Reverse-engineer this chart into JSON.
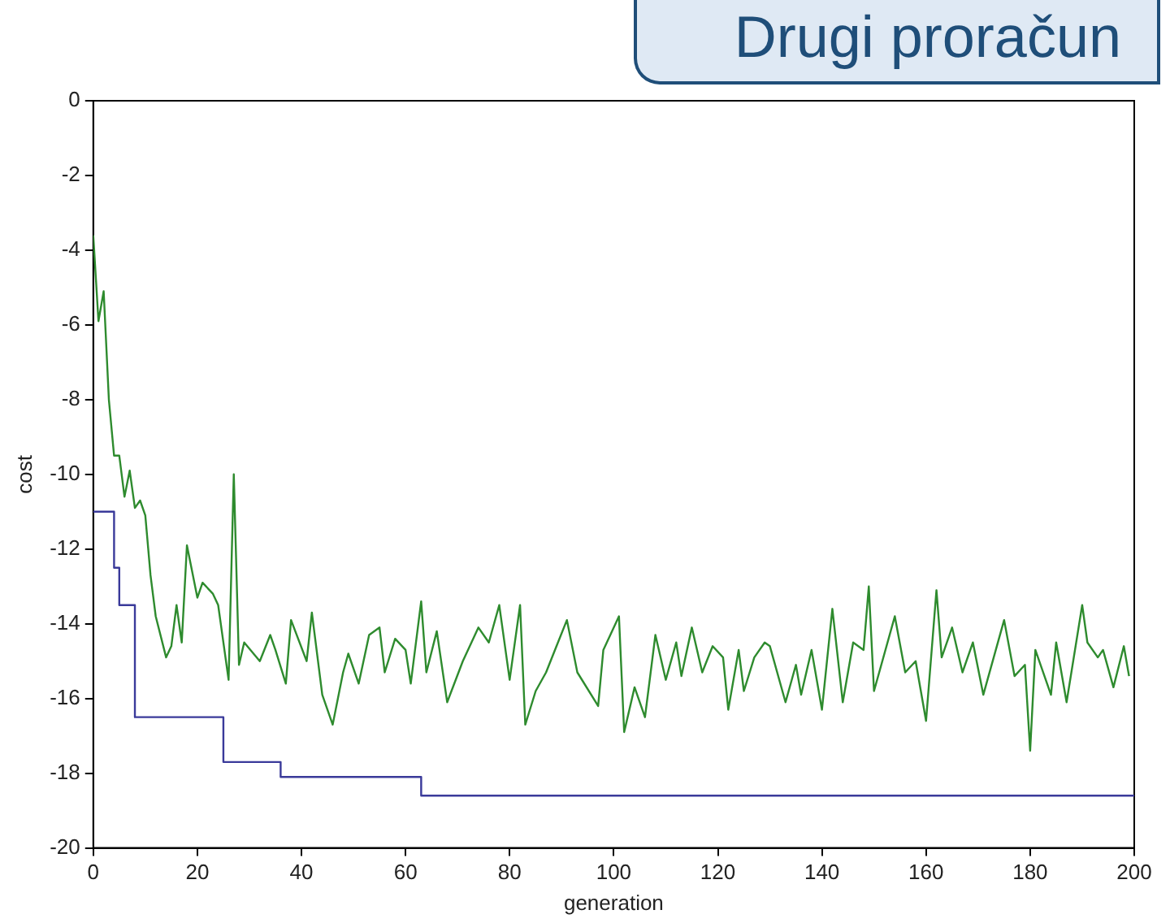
{
  "chart_data": {
    "type": "line",
    "title": "Drugi proračun",
    "xlabel": "generation",
    "ylabel": "cost",
    "xlim": [
      0,
      200
    ],
    "xticks": [
      0,
      20,
      40,
      60,
      80,
      100,
      120,
      140,
      160,
      180,
      200
    ],
    "ylim": [
      -20,
      0
    ],
    "yticks": [
      -20,
      -18,
      -16,
      -14,
      -12,
      -10,
      -8,
      -6,
      -4,
      -2,
      0
    ],
    "grid": false,
    "legend": false,
    "series": [
      {
        "color": "#2e8b2e",
        "x": [
          0,
          1,
          2,
          3,
          4,
          5,
          6,
          7,
          8,
          9,
          10,
          11,
          12,
          14,
          15,
          16,
          17,
          18,
          20,
          21,
          23,
          24,
          26,
          27,
          28,
          29,
          32,
          34,
          35,
          37,
          38,
          41,
          42,
          44,
          46,
          48,
          49,
          51,
          53,
          55,
          56,
          58,
          60,
          61,
          63,
          64,
          66,
          68,
          71,
          74,
          76,
          78,
          80,
          82,
          83,
          85,
          87,
          89,
          91,
          93,
          97,
          98,
          101,
          102,
          104,
          106,
          108,
          110,
          112,
          113,
          115,
          117,
          119,
          121,
          122,
          124,
          125,
          127,
          129,
          130,
          133,
          135,
          136,
          138,
          140,
          142,
          144,
          146,
          148,
          149,
          150,
          154,
          156,
          158,
          160,
          162,
          163,
          165,
          167,
          169,
          171,
          175,
          177,
          179,
          180,
          181,
          184,
          185,
          187,
          190,
          191,
          193,
          194,
          196,
          198,
          199
        ],
        "values": [
          -3.6,
          -5.9,
          -5.1,
          -8,
          -9.5,
          -9.5,
          -10.6,
          -9.9,
          -10.9,
          -10.7,
          -11.1,
          -12.7,
          -13.8,
          -14.9,
          -14.6,
          -13.5,
          -14.5,
          -11.9,
          -13.3,
          -12.9,
          -13.2,
          -13.5,
          -15.5,
          -10,
          -15.1,
          -14.5,
          -15,
          -14.3,
          -14.7,
          -15.6,
          -13.9,
          -15,
          -13.7,
          -15.9,
          -16.7,
          -15.3,
          -14.8,
          -15.6,
          -14.3,
          -14.1,
          -15.3,
          -14.4,
          -14.7,
          -15.6,
          -13.4,
          -15.3,
          -14.2,
          -16.1,
          -15,
          -14.1,
          -14.5,
          -13.5,
          -15.5,
          -13.5,
          -16.7,
          -15.8,
          -15.3,
          -14.6,
          -13.9,
          -15.3,
          -16.2,
          -14.7,
          -13.8,
          -16.9,
          -15.7,
          -16.5,
          -14.3,
          -15.5,
          -14.5,
          -15.4,
          -14.1,
          -15.3,
          -14.6,
          -14.9,
          -16.3,
          -14.7,
          -15.8,
          -14.9,
          -14.5,
          -14.6,
          -16.1,
          -15.1,
          -15.9,
          -14.7,
          -16.3,
          -13.6,
          -16.1,
          -14.5,
          -14.7,
          -13,
          -15.8,
          -13.8,
          -15.3,
          -15,
          -16.6,
          -13.1,
          -14.9,
          -14.1,
          -15.3,
          -14.5,
          -15.9,
          -13.9,
          -15.4,
          -15.1,
          -17.4,
          -14.7,
          -15.9,
          -14.5,
          -16.1,
          -13.5,
          -14.5,
          -14.9,
          -14.7,
          -15.7,
          -14.6,
          -15.4
        ]
      },
      {
        "type": "step",
        "color": "#3a3a9a",
        "x": [
          0,
          4,
          5,
          8,
          25,
          36,
          63,
          200
        ],
        "values": [
          -11,
          -12.5,
          -13.5,
          -16.5,
          -17.7,
          -18.1,
          -18.6,
          -18.6
        ]
      }
    ]
  }
}
